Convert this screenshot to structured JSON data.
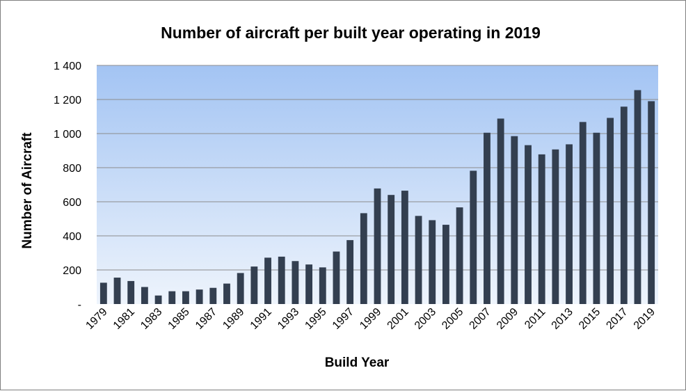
{
  "chart_data": {
    "type": "bar",
    "title": "Number of aircraft per built year operating in 2019",
    "xlabel": "Build Year",
    "ylabel": "Number of Aircraft",
    "ylim": [
      0,
      1400
    ],
    "yticks": [
      0,
      200,
      400,
      600,
      800,
      1000,
      1200,
      1400
    ],
    "ytick_labels": [
      "-",
      "200",
      "400",
      "600",
      "800",
      "1 000",
      "1 200",
      "1 400"
    ],
    "grid": true,
    "legend": "none",
    "categories": [
      "1979",
      "1980",
      "1981",
      "1982",
      "1983",
      "1984",
      "1985",
      "1986",
      "1987",
      "1988",
      "1989",
      "1990",
      "1991",
      "1992",
      "1993",
      "1994",
      "1995",
      "1996",
      "1997",
      "1998",
      "1999",
      "2000",
      "2001",
      "2002",
      "2003",
      "2004",
      "2005",
      "2006",
      "2007",
      "2008",
      "2009",
      "2010",
      "2011",
      "2012",
      "2013",
      "2014",
      "2015",
      "2016",
      "2017",
      "2018",
      "2019"
    ],
    "xtick_labels": [
      "1979",
      "1981",
      "1983",
      "1985",
      "1987",
      "1989",
      "1991",
      "1993",
      "1995",
      "1997",
      "1999",
      "2001",
      "2003",
      "2005",
      "2007",
      "2009",
      "2011",
      "2013",
      "2015",
      "2017",
      "2019"
    ],
    "values": [
      125,
      155,
      135,
      100,
      50,
      75,
      75,
      85,
      95,
      120,
      182,
      220,
      272,
      278,
      252,
      232,
      215,
      308,
      375,
      533,
      678,
      640,
      665,
      517,
      492,
      465,
      567,
      782,
      1005,
      1088,
      985,
      932,
      878,
      907,
      937,
      1068,
      1005,
      1092,
      1158,
      1255,
      1190
    ],
    "colors": {
      "bar": "#333f50",
      "plot_top": "#a3c4f3",
      "plot_bottom": "#eef4fc",
      "grid": "#8c8c8c"
    }
  }
}
